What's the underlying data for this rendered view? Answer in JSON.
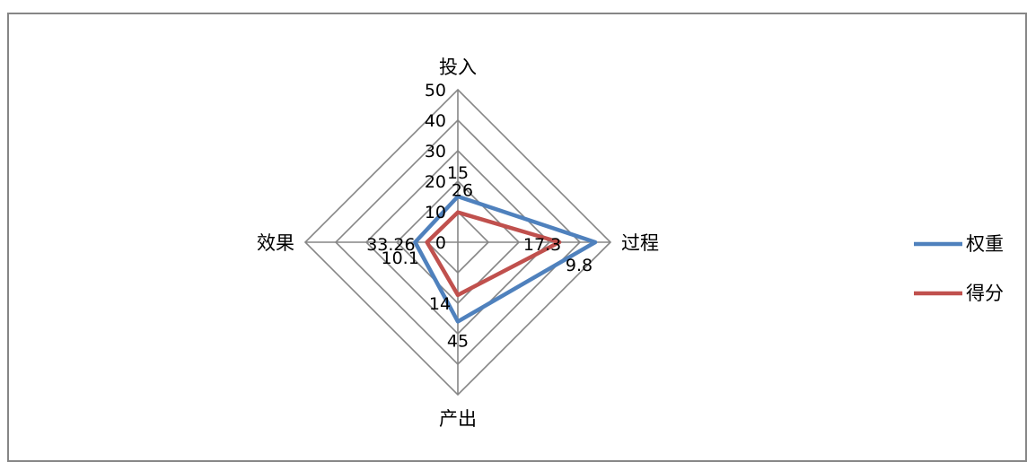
{
  "chart_data": {
    "type": "radar",
    "axes": [
      "投入",
      "过程",
      "产出",
      "效果"
    ],
    "r_ticks": [
      0,
      10,
      20,
      30,
      40,
      50
    ],
    "r_range": [
      0,
      50
    ],
    "grid": true,
    "legend_position": "right",
    "series": [
      {
        "name": "权重",
        "values": [
          15,
          45,
          26,
          14
        ],
        "color": "#4f81bd"
      },
      {
        "name": "得分",
        "values": [
          9.8,
          33.26,
          17.3,
          10.1
        ],
        "color": "#c0504d"
      }
    ],
    "data_labels": [
      "15",
      "9.8",
      "45",
      "33.26",
      "26",
      "17.3",
      "14",
      "10.1"
    ]
  }
}
